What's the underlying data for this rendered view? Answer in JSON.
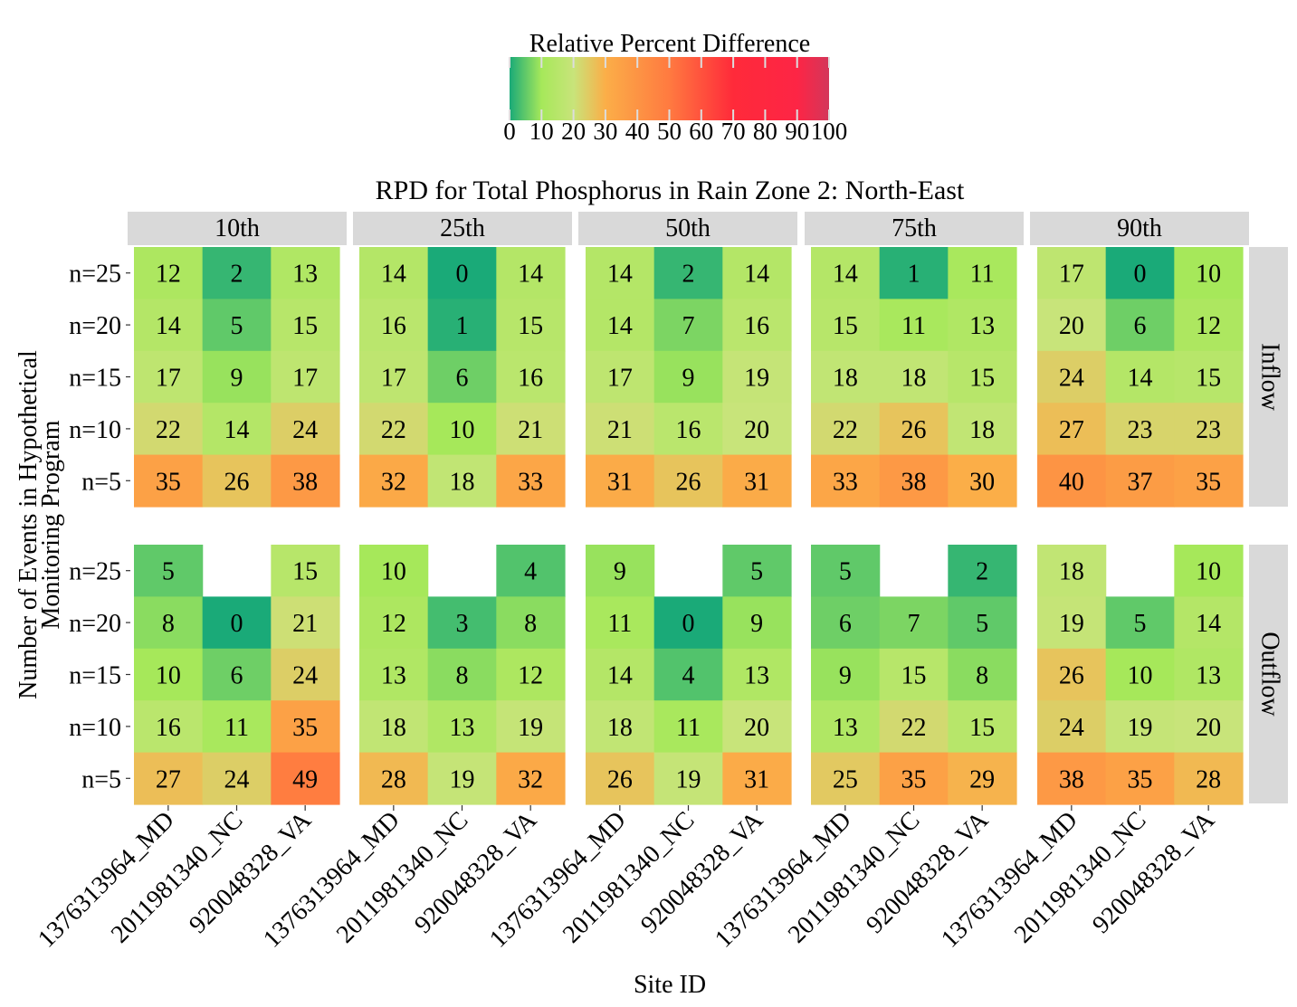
{
  "chart_data": {
    "type": "heatmap",
    "title": "RPD for Total Phosphorus in Rain Zone 2: North-East",
    "xlabel": "Site ID",
    "ylabel_lines": [
      "Number of Events in Hypothetical",
      "Monitoring Program"
    ],
    "legend": {
      "title": "Relative Percent Difference",
      "ticks": [
        "0",
        "10",
        "20",
        "30",
        "40",
        "50",
        "60",
        "70",
        "80",
        "90",
        "100"
      ],
      "range": [
        0,
        100
      ],
      "placement": "top",
      "colors": [
        {
          "v": 0,
          "c": "#1aaa78"
        },
        {
          "v": 10,
          "c": "#a6e85a"
        },
        {
          "v": 20,
          "c": "#c8e47a"
        },
        {
          "v": 30,
          "c": "#fbae48"
        },
        {
          "v": 50,
          "c": "#ff7a40"
        },
        {
          "v": 70,
          "c": "#ff2a3a"
        },
        {
          "v": 90,
          "c": "#fd2545"
        },
        {
          "v": 100,
          "c": "#d4365a"
        }
      ]
    },
    "percentiles": [
      "10th",
      "25th",
      "50th",
      "75th",
      "90th"
    ],
    "flows": [
      "Inflow",
      "Outflow"
    ],
    "sites": [
      "1376313964_MD",
      "2011981340_NC",
      "920048328_VA"
    ],
    "event_levels": [
      "n=25",
      "n=20",
      "n=15",
      "n=10",
      "n=5"
    ],
    "cells": {
      "Inflow": {
        "10th": [
          [
            12,
            2,
            13
          ],
          [
            14,
            5,
            15
          ],
          [
            17,
            9,
            17
          ],
          [
            22,
            14,
            24
          ],
          [
            35,
            26,
            38
          ]
        ],
        "25th": [
          [
            14,
            0,
            14
          ],
          [
            16,
            1,
            15
          ],
          [
            17,
            6,
            16
          ],
          [
            22,
            10,
            21
          ],
          [
            32,
            18,
            33
          ]
        ],
        "50th": [
          [
            14,
            2,
            14
          ],
          [
            14,
            7,
            16
          ],
          [
            17,
            9,
            19
          ],
          [
            21,
            16,
            20
          ],
          [
            31,
            26,
            31
          ]
        ],
        "75th": [
          [
            14,
            1,
            11
          ],
          [
            15,
            11,
            13
          ],
          [
            18,
            18,
            15
          ],
          [
            22,
            26,
            18
          ],
          [
            33,
            38,
            30
          ]
        ],
        "90th": [
          [
            17,
            0,
            10
          ],
          [
            20,
            6,
            12
          ],
          [
            24,
            14,
            15
          ],
          [
            27,
            23,
            23
          ],
          [
            40,
            37,
            35
          ]
        ]
      },
      "Outflow": {
        "10th": [
          [
            5,
            null,
            15
          ],
          [
            8,
            0,
            21
          ],
          [
            10,
            6,
            24
          ],
          [
            16,
            11,
            35
          ],
          [
            27,
            24,
            49
          ]
        ],
        "25th": [
          [
            10,
            null,
            4
          ],
          [
            12,
            3,
            8
          ],
          [
            13,
            8,
            12
          ],
          [
            18,
            13,
            19
          ],
          [
            28,
            19,
            32
          ]
        ],
        "50th": [
          [
            9,
            null,
            5
          ],
          [
            11,
            0,
            9
          ],
          [
            14,
            4,
            13
          ],
          [
            18,
            11,
            20
          ],
          [
            26,
            19,
            31
          ]
        ],
        "75th": [
          [
            5,
            null,
            2
          ],
          [
            6,
            7,
            5
          ],
          [
            9,
            15,
            8
          ],
          [
            13,
            22,
            15
          ],
          [
            25,
            35,
            29
          ]
        ],
        "90th": [
          [
            18,
            null,
            10
          ],
          [
            19,
            5,
            14
          ],
          [
            26,
            10,
            13
          ],
          [
            24,
            19,
            20
          ],
          [
            38,
            35,
            28
          ]
        ]
      }
    }
  }
}
